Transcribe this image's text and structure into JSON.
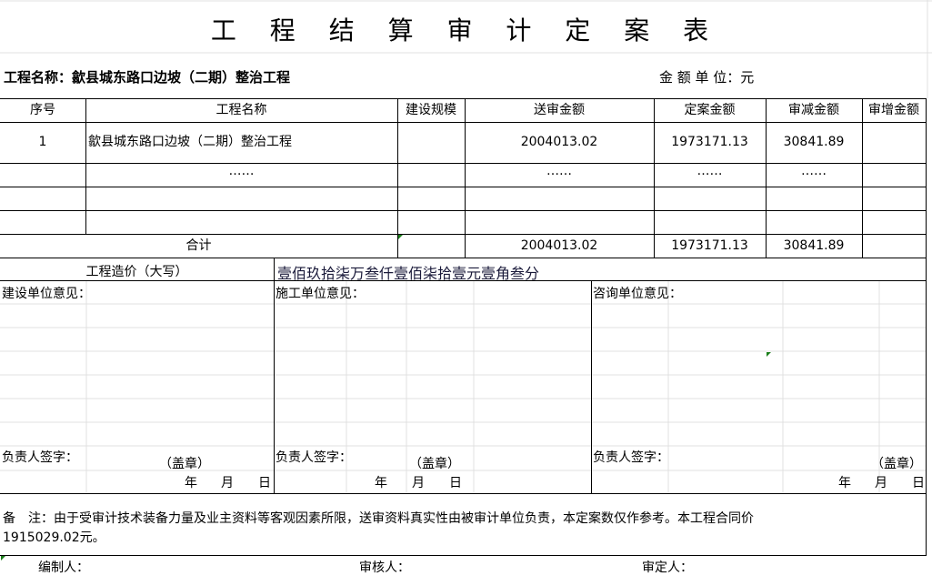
{
  "title": "工 程 结 算 审 计 定 案 表",
  "project_label": "工程名称：歙县城东路口边坡（二期）整治工程",
  "unit_label": "金 额 单 位：元",
  "table": {
    "headers": [
      "序号",
      "工程名称",
      "建设规模",
      "送审金额",
      "定案金额",
      "审减金额",
      "审增金额"
    ],
    "rows": [
      [
        "1",
        "歙县城东路口边坡（二期）整治工程",
        "",
        "2004013.02",
        "1973171.13",
        "30841.89",
        ""
      ],
      [
        "",
        "……",
        "",
        "……",
        "……",
        "……",
        ""
      ],
      [
        "",
        "",
        "",
        "",
        "",
        "",
        ""
      ],
      [
        "",
        "",
        "",
        "",
        "",
        "",
        ""
      ]
    ],
    "total": {
      "label": "合计",
      "submitted": "2004013.02",
      "approved": "1973171.13",
      "reduced": "30841.89"
    }
  },
  "capital": {
    "label": "工程造价（大写）",
    "value": "壹佰玖拾柒万叁仟壹佰柒拾壹元壹角叁分"
  },
  "opinions": [
    {
      "label": "建设单位意见：",
      "sign": "负责人签字：",
      "seal": "（盖章）",
      "year": "年",
      "month": "月",
      "day": "日"
    },
    {
      "label": "施工单位意见：",
      "sign": "负责人签字：",
      "seal": "（盖章）",
      "year": "年",
      "month": "月",
      "day": "日"
    },
    {
      "label": "咨询单位意见：",
      "sign": "负责人签字：",
      "seal": "（盖章）",
      "year": "年",
      "month": "月",
      "day": "日"
    }
  ],
  "remark_line1": "备　注：由于受审计技术装备力量及业主资料等客观因素所限，送审资料真实性由被审计单位负责，本定案数仅作参考。本工程合同价",
  "remark_line2": "1915029.02元。",
  "signers": {
    "preparer": "编制人：",
    "reviewer": "审核人：",
    "approver": "审定人："
  }
}
